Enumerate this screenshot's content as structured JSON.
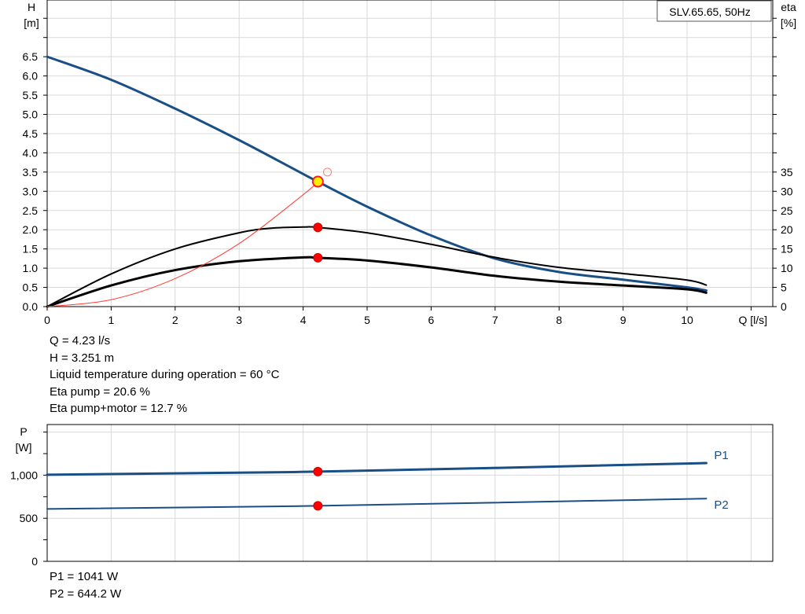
{
  "chart_data": [
    {
      "type": "line",
      "title": "SLV.65.65, 50Hz",
      "xlabel": "Q [l/s]",
      "ylabel": "H",
      "ylabel_unit": "[m]",
      "y2label": "eta",
      "y2label_unit": "[%]",
      "xlim": [
        0,
        11
      ],
      "ylim": [
        0,
        8
      ],
      "y2lim": [
        0,
        80
      ],
      "grid": true,
      "x_ticks": [
        "0",
        "1",
        "2",
        "3",
        "4",
        "5",
        "6",
        "7",
        "8",
        "9",
        "10"
      ],
      "y_ticks": [
        "0.0",
        "0.5",
        "1.0",
        "1.5",
        "2.0",
        "2.5",
        "3.0",
        "3.5",
        "4.0",
        "4.5",
        "5.0",
        "5.5",
        "6.0",
        "6.5"
      ],
      "y2_ticks": [
        "0",
        "5",
        "10",
        "15",
        "20",
        "25",
        "30",
        "35"
      ],
      "series": [
        {
          "color": "#1a4f86",
          "x": [
            0,
            1,
            2,
            3,
            4,
            4.23,
            5,
            6,
            7,
            8,
            9,
            10,
            10.3
          ],
          "y": [
            6.5,
            5.9,
            5.15,
            4.33,
            3.45,
            3.25,
            2.6,
            1.85,
            1.25,
            0.9,
            0.7,
            0.5,
            0.42
          ]
        },
        {
          "color": "#000000",
          "axis": "eta",
          "x": [
            0,
            1,
            2,
            3,
            3.5,
            4,
            4.23,
            5,
            6,
            7,
            8,
            9,
            10,
            10.3
          ],
          "y": [
            0,
            8.5,
            15,
            19.2,
            20.4,
            20.7,
            20.6,
            19.2,
            16.2,
            12.8,
            10.2,
            8.6,
            6.9,
            5.6
          ]
        },
        {
          "color": "#000000",
          "axis": "eta",
          "x": [
            0,
            1,
            2,
            3,
            4,
            4.23,
            5,
            6,
            7,
            8,
            9,
            10,
            10.3
          ],
          "y": [
            0,
            5.5,
            9.5,
            11.8,
            12.8,
            12.7,
            12.0,
            10.2,
            8.0,
            6.5,
            5.5,
            4.5,
            3.6
          ]
        },
        {
          "color": "#ff3b30",
          "x": [
            0,
            1,
            2,
            3,
            4,
            4.23
          ],
          "y": [
            0,
            0.18,
            0.73,
            1.64,
            2.91,
            3.25
          ]
        }
      ],
      "duty_point": {
        "x": 4.23,
        "y": 3.251
      },
      "eta_points": [
        {
          "x": 4.23,
          "y": 20.6
        },
        {
          "x": 4.23,
          "y": 12.7
        }
      ],
      "open_marker": {
        "x": 4.38,
        "y": 3.5
      }
    },
    {
      "type": "line",
      "ylabel": "P",
      "ylabel_unit": "[W]",
      "xlim": [
        0,
        11
      ],
      "ylim": [
        0,
        1500
      ],
      "grid": true,
      "y_ticks": [
        "0",
        "500",
        "1,000"
      ],
      "y_tick_values": [
        0,
        500,
        1000
      ],
      "series": [
        {
          "name": "P1",
          "color": "#1a4f86",
          "x": [
            0,
            4.23,
            10.3
          ],
          "y": [
            1005,
            1041,
            1140
          ]
        },
        {
          "name": "P2",
          "color": "#1a4f86",
          "x": [
            0,
            4.23,
            10.3
          ],
          "y": [
            608,
            644.2,
            728
          ]
        }
      ],
      "points": [
        {
          "x": 4.23,
          "y": 1041
        },
        {
          "x": 4.23,
          "y": 644.2
        }
      ]
    }
  ],
  "info": {
    "q": "Q = 4.23 l/s",
    "h": "H = 3.251 m",
    "temp": "Liquid temperature during operation = 60 °C",
    "eta_pump": "Eta pump = 20.6 %",
    "eta_total": "Eta pump+motor = 12.7 %",
    "p1": "P1 = 1041 W",
    "p2": "P2 = 644.2 W"
  }
}
